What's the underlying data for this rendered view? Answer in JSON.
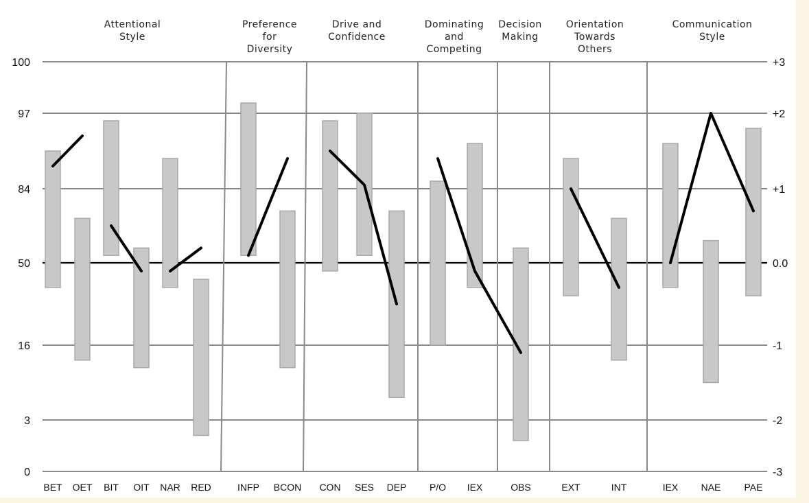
{
  "chart_data": {
    "type": "bar",
    "left_axis": {
      "ticks": [
        "100",
        "97",
        "84",
        "50",
        "16",
        "3",
        "0"
      ]
    },
    "right_axis": {
      "ticks": [
        "+3",
        "+2",
        "+1",
        "0.0",
        "-1",
        "-2",
        "-3"
      ],
      "ylim": [
        -3,
        3
      ]
    },
    "groups": [
      {
        "label": [
          "Attentional",
          "Style"
        ],
        "categories": [
          "BET",
          "OET",
          "BIT",
          "OIT",
          "NAR",
          "RED"
        ]
      },
      {
        "label": [
          "Preference",
          "for",
          "Diversity"
        ],
        "categories": [
          "INFP",
          "BCON"
        ]
      },
      {
        "label": [
          "Drive and",
          "Confidence"
        ],
        "categories": [
          "CON",
          "SES",
          "DEP"
        ]
      },
      {
        "label": [
          "Dominating",
          "and",
          "Competing"
        ],
        "categories": [
          "P/O",
          "IEX"
        ]
      },
      {
        "label": [
          "Decision",
          "Making"
        ],
        "categories": [
          "OBS"
        ]
      },
      {
        "label": [
          "Orientation",
          "Towards",
          "Others"
        ],
        "categories": [
          "EXT",
          "INT"
        ]
      },
      {
        "label": [
          "Communication",
          "Style"
        ],
        "categories": [
          "IEX",
          "NAE",
          "PAE"
        ]
      }
    ],
    "categories": [
      "BET",
      "OET",
      "BIT",
      "OIT",
      "NAR",
      "RED",
      "INFP",
      "BCON",
      "CON",
      "SES",
      "DEP",
      "P/O",
      "IEX",
      "OBS",
      "EXT",
      "INT",
      "IEX",
      "NAE",
      "PAE"
    ],
    "ranges": [
      [
        -0.3,
        1.5
      ],
      [
        -1.2,
        0.6
      ],
      [
        0.1,
        1.9
      ],
      [
        -1.3,
        0.2
      ],
      [
        -0.3,
        1.4
      ],
      [
        -2.3,
        -0.2
      ],
      [
        0.1,
        2.2
      ],
      [
        -1.3,
        0.7
      ],
      [
        -0.1,
        1.9
      ],
      [
        0.1,
        2.0
      ],
      [
        -1.7,
        0.7
      ],
      [
        -1.0,
        1.1
      ],
      [
        -0.3,
        1.6
      ],
      [
        -2.4,
        0.2
      ],
      [
        -0.4,
        1.4
      ],
      [
        -1.2,
        0.6
      ],
      [
        -0.3,
        1.6
      ],
      [
        -1.5,
        0.3
      ],
      [
        -0.4,
        1.8
      ]
    ],
    "line_segments": [
      [
        [
          0,
          1.3
        ],
        [
          1,
          1.7
        ]
      ],
      [
        [
          2,
          0.5
        ],
        [
          3,
          -0.1
        ]
      ],
      [
        [
          4,
          -0.1
        ],
        [
          5,
          0.2
        ]
      ],
      [
        [
          6,
          0.1
        ],
        [
          7,
          1.4
        ]
      ],
      [
        [
          8,
          1.5
        ],
        [
          9,
          1.05
        ],
        [
          10,
          -0.5
        ]
      ],
      [
        [
          11,
          1.4
        ],
        [
          12,
          -0.1
        ],
        [
          13,
          -1.1
        ]
      ],
      [
        [
          14,
          1.0
        ],
        [
          15,
          -0.3
        ]
      ],
      [
        [
          16,
          0.0
        ],
        [
          17,
          2.0
        ],
        [
          18,
          0.7
        ]
      ]
    ],
    "colors": {
      "range_bar": "#c8c8c8",
      "range_bar_stroke": "#a8a8a8",
      "line": "#000000",
      "grid": "#8a8a8a",
      "background": "#ffffff",
      "page": "#fdf5e4"
    }
  }
}
